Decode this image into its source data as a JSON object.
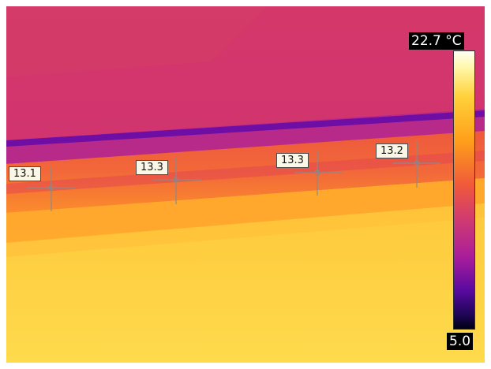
{
  "colorScale": {
    "max": "22.7 °C",
    "min": "5.0",
    "palette": [
      "#000014",
      "#1e0555",
      "#5a0aa0",
      "#aa1e9a",
      "#d23c6e",
      "#f05a3a",
      "#ffa019",
      "#ffd23c",
      "#fff7a8",
      "#fffff2"
    ]
  },
  "spots": [
    {
      "label": "13.1"
    },
    {
      "label": "13.3"
    },
    {
      "label": "13.3"
    },
    {
      "label": "13.2"
    }
  ]
}
